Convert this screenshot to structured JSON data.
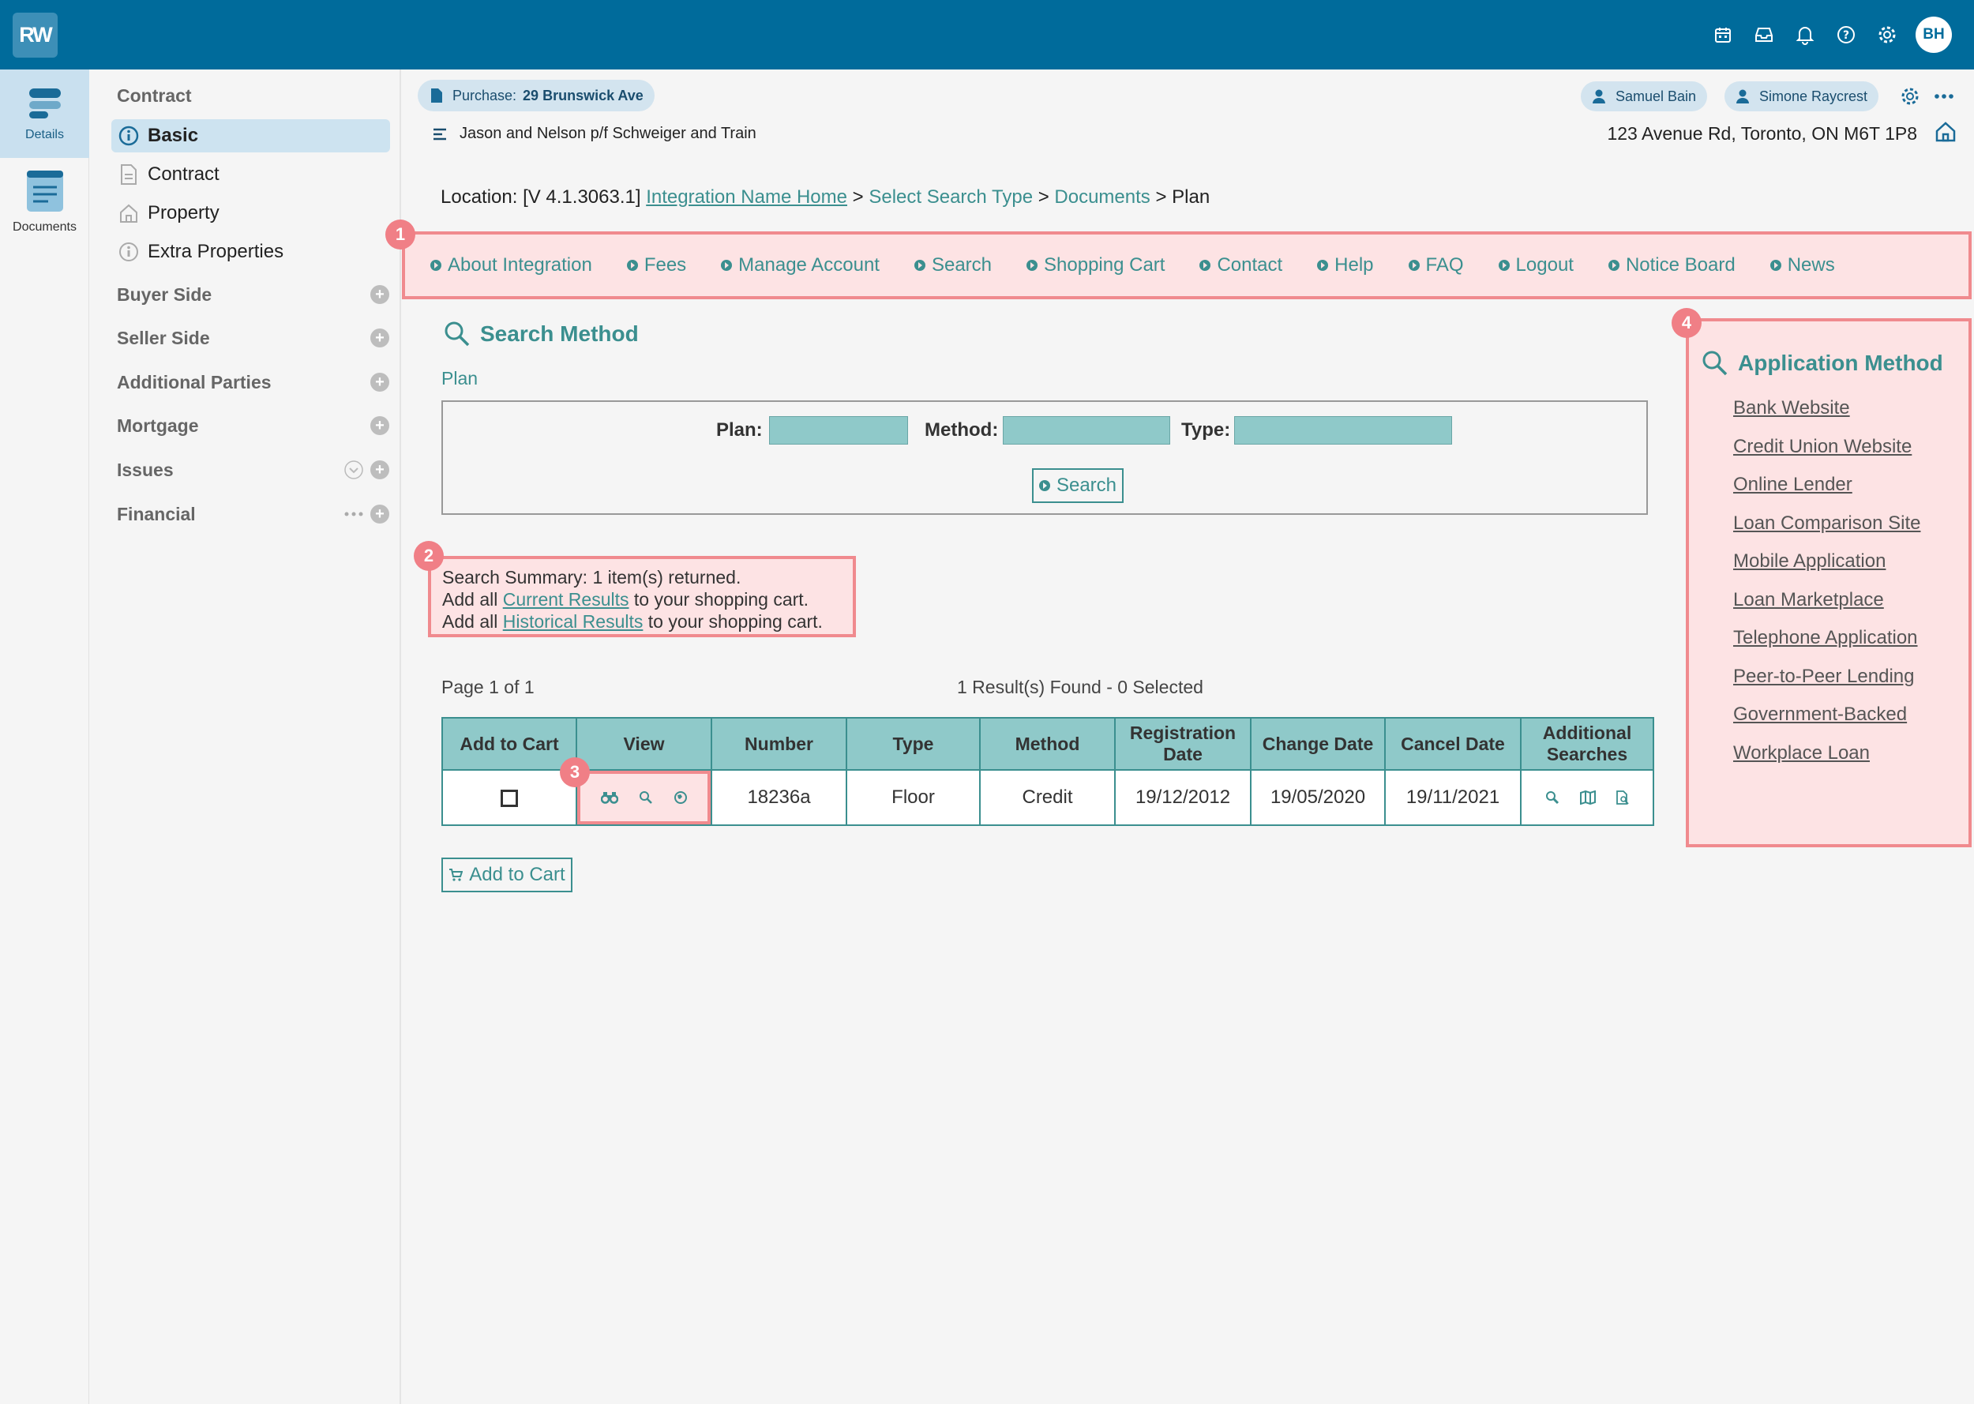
{
  "topbar": {
    "logo": "RW",
    "avatar": "BH",
    "icons": [
      "calendar-icon",
      "inbox-icon",
      "bell-icon",
      "help-icon",
      "gear-icon"
    ]
  },
  "rail": [
    {
      "label": "Details",
      "active": true
    },
    {
      "label": "Documents",
      "active": false
    }
  ],
  "sidebar": {
    "heading": "Contract",
    "items": [
      {
        "label": "Basic",
        "active": true,
        "icon": "info-icon"
      },
      {
        "label": "Contract",
        "active": false,
        "icon": "document-icon"
      },
      {
        "label": "Property",
        "active": false,
        "icon": "house-icon"
      },
      {
        "label": "Extra Properties",
        "active": false,
        "icon": "info-icon"
      }
    ],
    "sections": [
      "Buyer Side",
      "Seller Side",
      "Additional Parties",
      "Mortgage",
      "Issues",
      "Financial"
    ]
  },
  "header": {
    "purchase_label": "Purchase:",
    "purchase_value": "29 Brunswick Ave",
    "parties": "Jason and Nelson p/f Schweiger and Train",
    "users": [
      "Samuel Bain",
      "Simone Raycrest"
    ],
    "address": "123 Avenue Rd, Toronto, ON M6T 1P8"
  },
  "location": {
    "prefix": "Location: [V 4.1.3063.1]",
    "link1": "Integration Name Home",
    "sep": ">",
    "crumb2": "Select Search Type",
    "crumb3": "Documents",
    "current": "Plan"
  },
  "nav": [
    "About Integration",
    "Fees",
    "Manage Account",
    "Search",
    "Shopping Cart",
    "Contact",
    "Help",
    "FAQ",
    "Logout",
    "Notice Board",
    "News"
  ],
  "badges": [
    "1",
    "2",
    "3",
    "4"
  ],
  "search_method": {
    "title": "Search Method",
    "subtitle": "Plan",
    "plan_label": "Plan:",
    "method_label": "Method:",
    "type_label": "Type:",
    "plan_value": "",
    "method_value": "",
    "type_value": "",
    "search_button": "Search"
  },
  "summary": {
    "line1": "Search Summary: 1 item(s) returned.",
    "add_all": "Add all",
    "current_link": "Current Results",
    "historical_link": "Historical Results",
    "suffix": "to your shopping cart."
  },
  "paging": {
    "page": "Page 1 of 1",
    "results": "1 Result(s) Found - 0 Selected"
  },
  "table": {
    "headers": [
      "Add to Cart",
      "View",
      "Number",
      "Type",
      "Method",
      "Registration Date",
      "Change Date",
      "Cancel Date",
      "Additional Searches"
    ],
    "rows": [
      {
        "number": "18236a",
        "type": "Floor",
        "method": "Credit",
        "registration_date": "19/12/2012",
        "change_date": "19/05/2020",
        "cancel_date": "19/11/2021"
      }
    ]
  },
  "add_to_cart_button": "Add to Cart",
  "application_method": {
    "title": "Application Method",
    "links": [
      "Bank Website",
      "Credit Union Website",
      "Online Lender",
      "Loan Comparison Site",
      "Mobile Application",
      "Loan Marketplace",
      "Telephone Application",
      "Peer-to-Peer Lending",
      "Government-Backed",
      "Workplace Loan"
    ]
  },
  "colors": {
    "brand": "#006b9b",
    "accent": "#3b8f8f",
    "highlight": "#f08a8e"
  }
}
